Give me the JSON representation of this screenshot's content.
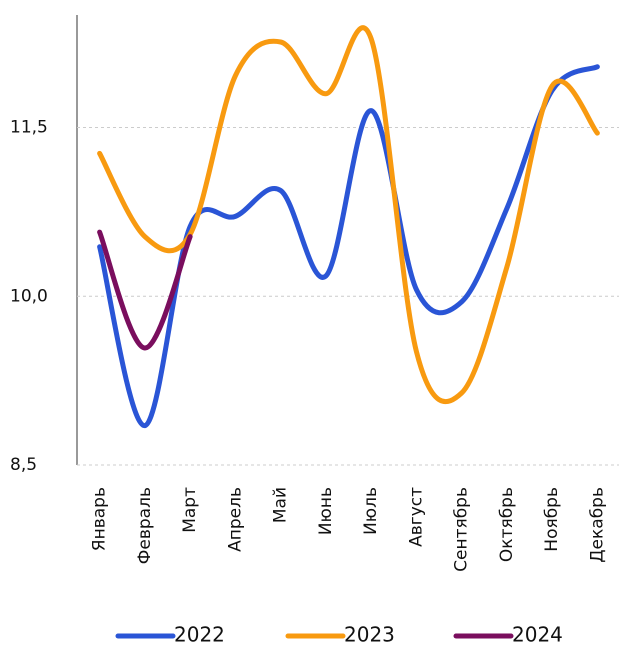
{
  "chart_data": {
    "type": "line",
    "categories": [
      "Январь",
      "Февраль",
      "Март",
      "Апрель",
      "Май",
      "Июнь",
      "Июль",
      "Август",
      "Сентябрь",
      "Октябрь",
      "Ноябрь",
      "Декабрь"
    ],
    "series": [
      {
        "name": "2022",
        "color": "#2a55d6",
        "values": [
          10.44,
          8.85,
          10.62,
          10.71,
          10.94,
          10.18,
          11.65,
          10.06,
          9.95,
          10.78,
          11.83,
          12.04
        ]
      },
      {
        "name": "2023",
        "color": "#f89a10",
        "values": [
          11.27,
          10.53,
          10.55,
          11.96,
          12.26,
          11.8,
          12.29,
          9.51,
          9.14,
          10.26,
          11.87,
          11.45
        ]
      },
      {
        "name": "2024",
        "color": "#7a0e5e",
        "values": [
          10.57,
          9.54,
          10.53,
          null,
          null,
          null,
          null,
          null,
          null,
          null,
          null,
          null
        ]
      }
    ],
    "ylim": [
      8.5,
      12.5
    ],
    "yticks": [
      {
        "value": 8.5,
        "label": "8,5"
      },
      {
        "value": 10,
        "label": "10,0"
      },
      {
        "value": 11.5,
        "label": "11,5"
      }
    ],
    "grid": true,
    "legend": "bottom"
  }
}
